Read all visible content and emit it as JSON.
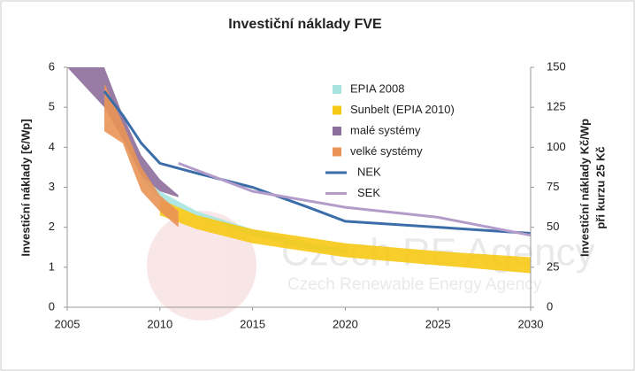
{
  "chart_data": {
    "type": "band-line",
    "title": "Investiční náklady FVE",
    "ylabel": "Investiční náklady [€/Wp]",
    "y2label": [
      "Investiční náklady Kč/Wp",
      "při kurzu 25 Kč"
    ],
    "watermark": [
      "Czech RE Agency",
      "Czech Renewable Energy Agency"
    ],
    "xlim": [
      2005,
      2030
    ],
    "xticks": [
      2005,
      2010,
      2015,
      2020,
      2025,
      2030
    ],
    "ylim": [
      0,
      6
    ],
    "yticks": [
      0,
      1,
      2,
      3,
      4,
      5,
      6
    ],
    "y2lim": [
      0,
      150
    ],
    "y2ticks": [
      0,
      25,
      50,
      75,
      100,
      125,
      150
    ],
    "legend": "upper-right",
    "bands": [
      {
        "name": "EPIA 2008",
        "color": "#a8e4df",
        "x": [
          2009,
          2010,
          2012,
          2015,
          2018,
          2020
        ],
        "high": [
          3.4,
          2.9,
          2.4,
          1.95,
          1.6,
          1.45
        ],
        "low": [
          3.2,
          2.7,
          2.25,
          1.8,
          1.45,
          1.35
        ]
      },
      {
        "name": "Sunbelt (EPIA 2010)",
        "color": "#f6c915",
        "x": [
          2010,
          2012,
          2015,
          2020,
          2025,
          2030
        ],
        "high": [
          2.7,
          2.3,
          1.95,
          1.6,
          1.4,
          1.25
        ],
        "low": [
          2.3,
          1.95,
          1.6,
          1.25,
          1.05,
          0.85
        ]
      },
      {
        "name": "malé systémy",
        "color": "#8d6e9c",
        "x": [
          2005,
          2007,
          2008,
          2009,
          2010,
          2011
        ],
        "high": [
          6,
          6,
          4.8,
          3.8,
          3.2,
          2.8
        ],
        "low": [
          6,
          5,
          4.2,
          3.3,
          2.9,
          2.75
        ]
      },
      {
        "name": "velké systémy",
        "color": "#e99455",
        "x": [
          2007,
          2008,
          2009,
          2010,
          2011
        ],
        "high": [
          5.6,
          4.6,
          3.5,
          2.8,
          2.4
        ],
        "low": [
          4.4,
          4.1,
          2.9,
          2.4,
          2.0
        ]
      }
    ],
    "series": [
      {
        "name": "NEK",
        "color": "#3b6ea8",
        "x": [
          2007,
          2008,
          2009,
          2010,
          2012,
          2015,
          2018,
          2020,
          2025,
          2030
        ],
        "values": [
          5.4,
          4.8,
          4.1,
          3.6,
          3.35,
          3.0,
          2.5,
          2.15,
          2.0,
          1.85
        ]
      },
      {
        "name": "SEK",
        "color": "#b39cca",
        "x": [
          2011,
          2015,
          2020,
          2025,
          2030
        ],
        "values": [
          3.6,
          2.9,
          2.5,
          2.25,
          1.8
        ]
      }
    ]
  }
}
